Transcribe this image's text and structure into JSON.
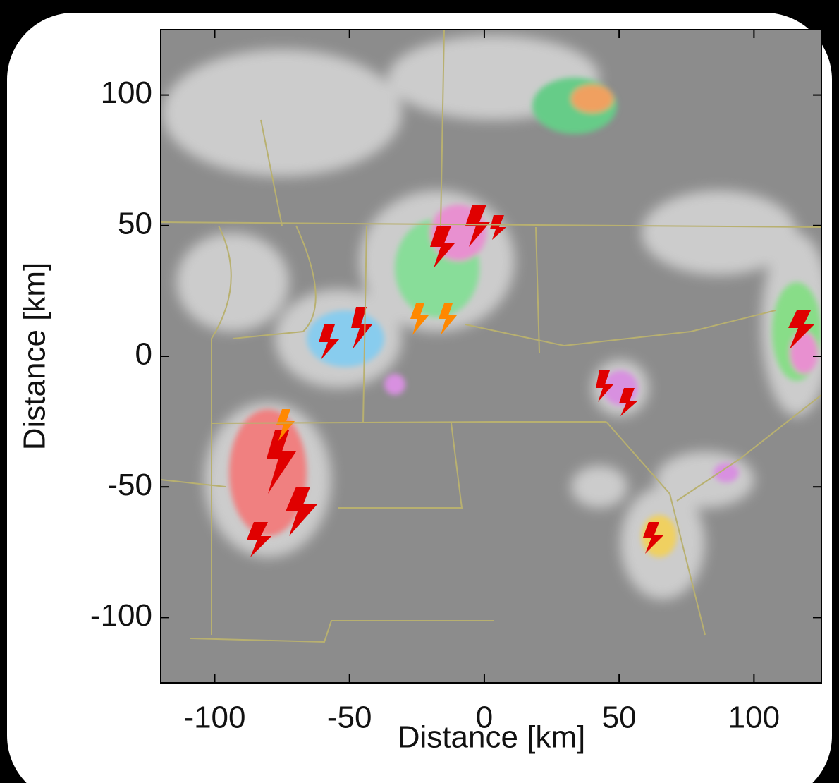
{
  "chart_data": {
    "type": "image",
    "xlabel": "Distance [km]",
    "ylabel": "Distance [km]",
    "xlim": [
      -120,
      125
    ],
    "ylim": [
      -125,
      125
    ],
    "xticks": [
      -100,
      -50,
      0,
      50,
      100
    ],
    "yticks": [
      -100,
      -50,
      0,
      50,
      100
    ]
  }
}
